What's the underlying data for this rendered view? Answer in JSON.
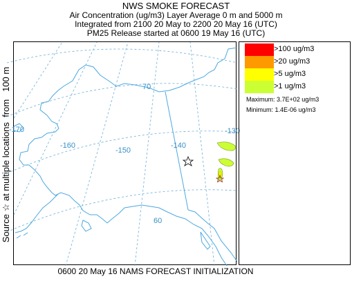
{
  "header": {
    "title": "NWS SMOKE FORECAST",
    "line2": "Air Concentration (ug/m3) Layer Average    0 m and  5000 m",
    "line3": "Integrated from 2100 20 May to 2200 20 May 16 (UTC)",
    "line4": "PM25 Release started at 0600 19 May 16 (UTC)"
  },
  "side_label": "Source ☆ at multiple locations  from   100 m",
  "footer": "0600 20 May 16 NAMS FORECAST INITIALIZATION",
  "map": {
    "graticule_labels": [
      "-170",
      "-160",
      "-150",
      "-140",
      "-130",
      "70",
      "60"
    ],
    "source_marker": "star"
  },
  "legend": {
    "items": [
      {
        "label": ">100 ug/m3",
        "color": "#ff0000"
      },
      {
        "label": ">20 ug/m3",
        "color": "#ff9900"
      },
      {
        "label": ">5 ug/m3",
        "color": "#ffff00"
      },
      {
        "label": ">1 ug/m3",
        "color": "#ccff33"
      }
    ],
    "maximum": "Maximum: 3.7E+02 ug/m3",
    "minimum": "Minimum: 1.4E-06 ug/m3"
  },
  "colors": {
    "graticule": "#6aaed6",
    "coastline": "#4aa8e0",
    "border": "#4aa8e0"
  }
}
